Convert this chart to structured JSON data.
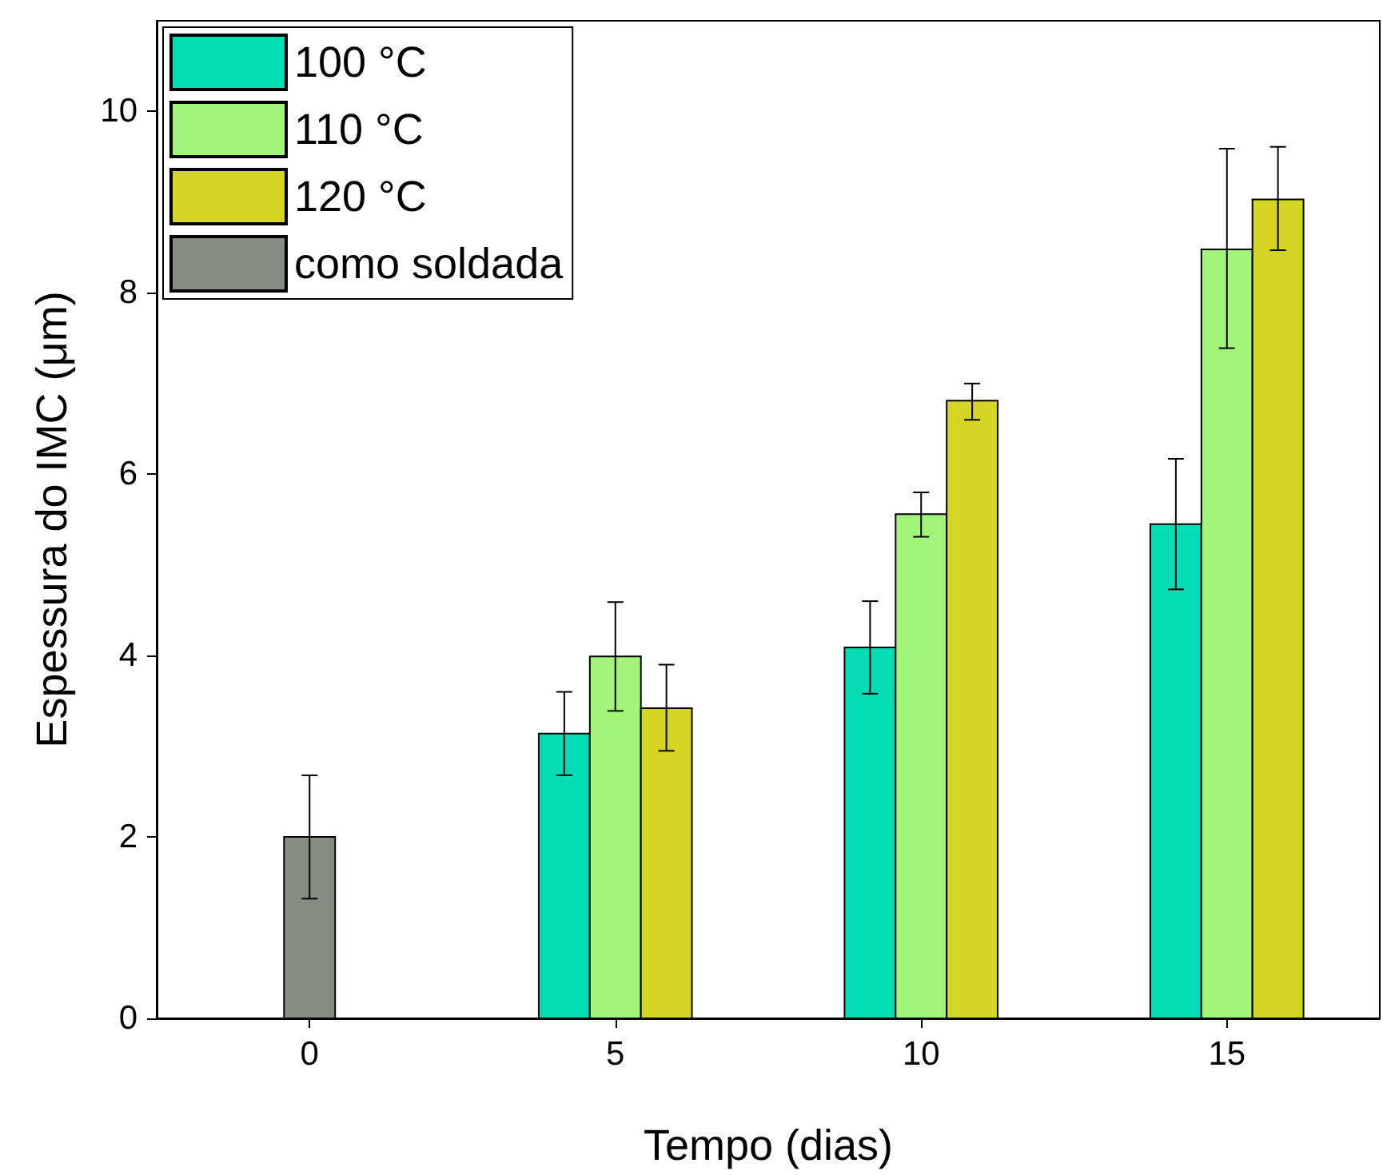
{
  "chart_data": {
    "type": "bar",
    "xlabel": "Tempo (dias)",
    "ylabel": "Espessura do IMC (μm)",
    "categories": [
      "0",
      "5",
      "10",
      "15"
    ],
    "ylim": [
      0,
      11
    ],
    "yticks": [
      0,
      2,
      4,
      6,
      8,
      10
    ],
    "grid": false,
    "legend": "top left",
    "series": [
      {
        "name": "100 °C",
        "color": "#03dcb4",
        "values": [
          null,
          3.14,
          4.09,
          5.45
        ],
        "errors": [
          null,
          [
            2.68,
            3.6
          ],
          [
            3.58,
            4.6
          ],
          [
            4.73,
            6.17
          ]
        ]
      },
      {
        "name": "110 °C",
        "color": "#a0f57a",
        "values": [
          null,
          3.99,
          5.56,
          8.48
        ],
        "errors": [
          null,
          [
            3.39,
            4.59
          ],
          [
            5.31,
            5.8
          ],
          [
            7.39,
            9.59
          ]
        ]
      },
      {
        "name": "120 °C",
        "color": "#d4d424",
        "values": [
          null,
          3.42,
          6.81,
          9.03
        ],
        "errors": [
          null,
          [
            2.95,
            3.9
          ],
          [
            6.6,
            7.0
          ],
          [
            8.47,
            9.61
          ]
        ]
      },
      {
        "name": "como soldada",
        "color": "#858c80",
        "values": [
          2.0,
          null,
          null,
          null
        ],
        "errors": [
          [
            1.32,
            2.68
          ],
          null,
          null,
          null
        ]
      }
    ]
  }
}
